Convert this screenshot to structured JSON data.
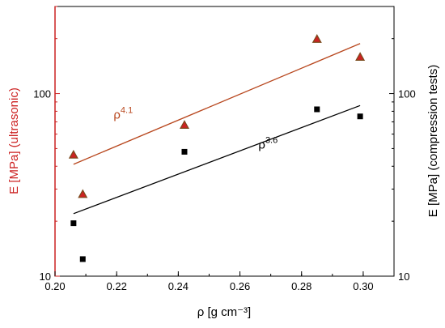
{
  "chart_data": {
    "type": "scatter",
    "x_axis": {
      "label": "ρ [g cm⁻³]",
      "range": [
        0.2,
        0.31
      ],
      "ticks": [
        0.2,
        0.22,
        0.24,
        0.26,
        0.28,
        0.3
      ],
      "tick_labels": [
        "0.20",
        "0.22",
        "0.24",
        "0.26",
        "0.28",
        "0.30"
      ]
    },
    "y_axis_left": {
      "label": "E [MPa] (ultrasonic)",
      "scale": "log",
      "range": [
        10,
        300
      ],
      "ticks": [
        10,
        100
      ],
      "tick_labels": [
        "10",
        "100"
      ],
      "color": "#cc2222"
    },
    "y_axis_right": {
      "label": "E [MPa] (compression tests)",
      "scale": "log",
      "range": [
        10,
        300
      ],
      "ticks": [
        10,
        100
      ],
      "tick_labels": [
        "10",
        "100"
      ],
      "color": "#000000"
    },
    "series": [
      {
        "marker": "triangle",
        "axis": "left",
        "color": "#cc2222",
        "edge_color": "#7a4a1c",
        "points": [
          [
            0.206,
            46
          ],
          [
            0.209,
            28
          ],
          [
            0.242,
            67
          ],
          [
            0.285,
            198
          ],
          [
            0.299,
            158
          ]
        ]
      },
      {
        "marker": "square",
        "axis": "right",
        "color": "#000000",
        "points": [
          [
            0.206,
            19.5
          ],
          [
            0.209,
            12.4
          ],
          [
            0.242,
            48
          ],
          [
            0.285,
            82
          ],
          [
            0.299,
            75
          ]
        ]
      }
    ],
    "fits": [
      {
        "axis": "left",
        "color": "#b8471e",
        "x_range": [
          0.206,
          0.299
        ],
        "y_range": [
          41,
          188
        ],
        "label_base": "ρ",
        "label_exp": "4.1",
        "label_pos": [
          0.219,
          73
        ]
      },
      {
        "axis": "right",
        "color": "#000000",
        "x_range": [
          0.206,
          0.299
        ],
        "y_range": [
          22,
          86
        ],
        "label_base": "ρ",
        "label_exp": "3.6",
        "label_pos": [
          0.266,
          50
        ]
      }
    ]
  }
}
